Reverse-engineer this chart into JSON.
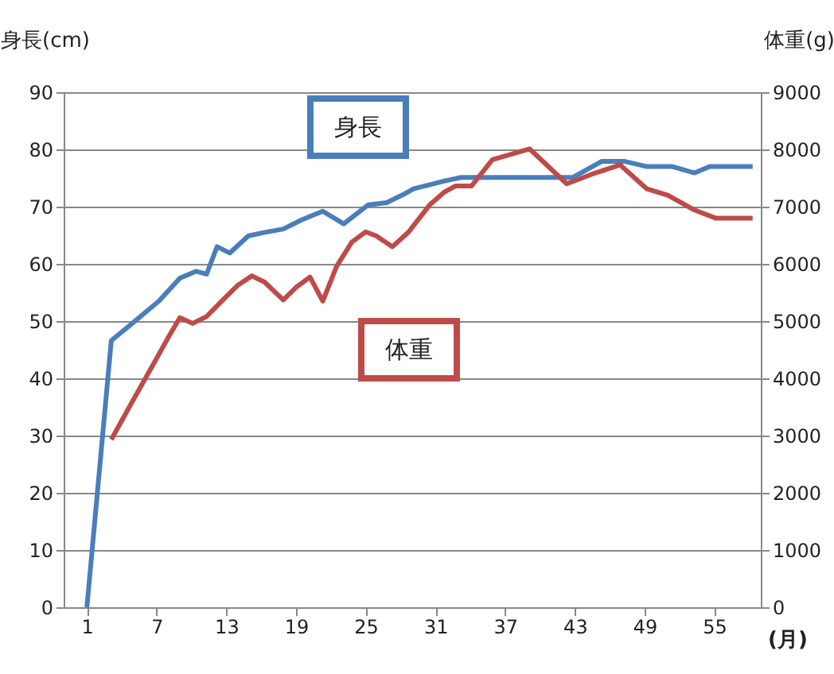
{
  "chart_data": {
    "type": "line",
    "ylabel": "身長(cm)",
    "y2label": "体重(g)",
    "xlabel": "(月)",
    "xlim": [
      -1,
      59
    ],
    "xticks": [
      1,
      7,
      13,
      19,
      25,
      31,
      37,
      43,
      49,
      55
    ],
    "ylim": [
      0,
      90
    ],
    "yticks": [
      0,
      10,
      20,
      30,
      40,
      50,
      60,
      70,
      80,
      90
    ],
    "y2lim": [
      0,
      9000
    ],
    "y2ticks": [
      0,
      1000,
      2000,
      3000,
      4000,
      5000,
      6000,
      7000,
      8000,
      9000
    ],
    "grid": "y",
    "marker": "none",
    "line_style": "solid",
    "series": [
      {
        "name": "身長",
        "color": "#4a7ebb",
        "x": [
          1,
          3.1,
          4.9,
          7.2,
          9.0,
          10.4,
          11.3,
          12.2,
          13.3,
          14.9,
          16.3,
          17.9,
          19.5,
          21.3,
          23.1,
          25.2,
          26.8,
          28.4,
          29.1,
          31.8,
          33.2,
          40.0,
          42.8,
          45.3,
          47.3,
          49.2,
          51.4,
          53.3,
          54.6,
          58.3
        ],
        "values": [
          0,
          46.6,
          49.6,
          53.5,
          57.5,
          58.7,
          58.2,
          63.0,
          61.9,
          64.9,
          65.5,
          66.1,
          67.7,
          69.2,
          67.0,
          70.3,
          70.7,
          72.3,
          73.1,
          74.5,
          75.1,
          75.1,
          75.1,
          77.9,
          77.9,
          77.0,
          77.0,
          75.9,
          77.0,
          77.0
        ]
      },
      {
        "name": "体重",
        "color": "#be4b48",
        "axis": "y2",
        "x": [
          3.1,
          4.9,
          6.7,
          8.1,
          9.0,
          10.1,
          11.3,
          12.6,
          14.0,
          15.2,
          16.3,
          17.9,
          19.0,
          20.2,
          21.3,
          22.5,
          23.8,
          25.0,
          25.9,
          27.3,
          28.7,
          30.5,
          31.8,
          32.7,
          34.1,
          35.9,
          39.1,
          42.3,
          44.5,
          46.9,
          49.2,
          51.0,
          53.3,
          55.1,
          58.3
        ],
        "values": [
          2930,
          3590,
          4240,
          4750,
          5060,
          4960,
          5080,
          5350,
          5630,
          5790,
          5680,
          5370,
          5590,
          5770,
          5350,
          5960,
          6380,
          6560,
          6490,
          6300,
          6560,
          7030,
          7260,
          7360,
          7360,
          7820,
          8010,
          7400,
          7570,
          7730,
          7310,
          7200,
          6940,
          6800,
          6800
        ]
      }
    ]
  }
}
